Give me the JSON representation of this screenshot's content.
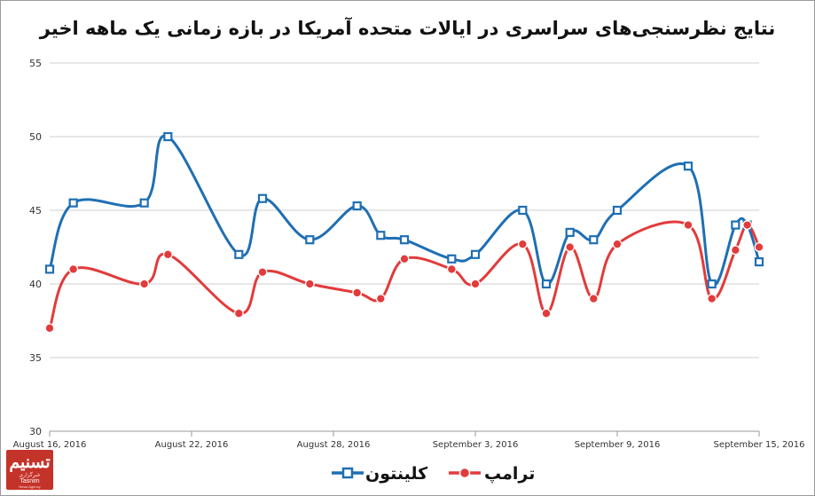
{
  "chart_data": {
    "type": "line",
    "title": "نتایج نظرسنجی‌های سراسری در ایالات متحده آمریکا در بازه زمانی یک ماهه اخیر",
    "x_tick_labels": [
      "August 16, 2016",
      "August 22, 2016",
      "August 28, 2016",
      "September 3, 2016",
      "September 9, 2016",
      "September 15, 2016"
    ],
    "x": [
      "2016-08-16",
      "2016-08-17",
      "2016-08-20",
      "2016-08-21",
      "2016-08-24",
      "2016-08-25",
      "2016-08-27",
      "2016-08-29",
      "2016-08-30",
      "2016-08-31",
      "2016-09-02",
      "2016-09-03",
      "2016-09-05",
      "2016-09-06",
      "2016-09-07",
      "2016-09-08",
      "2016-09-09",
      "2016-09-12",
      "2016-09-13",
      "2016-09-14",
      "2016-09-15"
    ],
    "ylim": [
      30,
      55
    ],
    "y_ticks": [
      30,
      35,
      40,
      45,
      50,
      55
    ],
    "grid": true,
    "legend_position": "bottom-center",
    "series": [
      {
        "name": "کلینتون",
        "color": "#1f6fb3",
        "marker": "square",
        "values": [
          41,
          45.5,
          45.5,
          50,
          42,
          45.8,
          43,
          45.3,
          43.3,
          43,
          41.7,
          42,
          45,
          40,
          43.5,
          43,
          45,
          48,
          40,
          44,
          41.5
        ]
      },
      {
        "name": "ترامپ",
        "color": "#e23b3b",
        "marker": "circle",
        "values": [
          37,
          41,
          40,
          42,
          38,
          40.8,
          40,
          39.4,
          39,
          41.7,
          41,
          40,
          42.7,
          38,
          42.5,
          39,
          42.7,
          44,
          39,
          42.3,
          42.5
        ]
      }
    ],
    "series_extra_points": [
      {
        "series": "کلینتون",
        "x": "2016-09-14T12:00",
        "value": 44
      },
      {
        "series": "ترامپ",
        "x": "2016-09-14T12:00",
        "value": 44
      }
    ]
  },
  "logo": {
    "mark": "تسنیم",
    "sub_fa": "خبرگزاری",
    "sub_en": "Tasnim",
    "sub_en2": "News Agency"
  }
}
